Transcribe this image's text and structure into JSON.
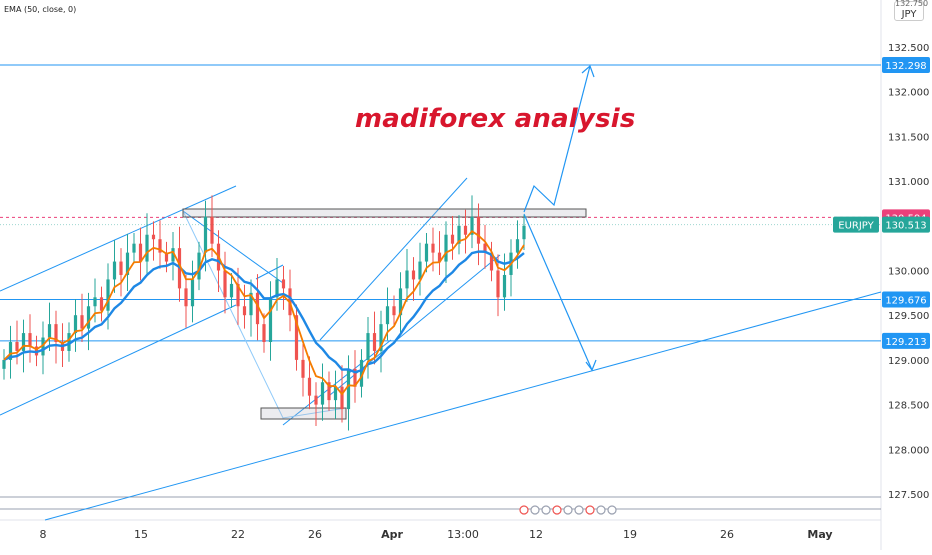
{
  "window": {
    "indicator_legend": "EMA (50, close, 0)",
    "currency_badge_top": "132.750",
    "currency_badge": "JPY"
  },
  "chart_data": {
    "type": "candlestick",
    "title": "madiforex analysis",
    "symbol": "EURJPY",
    "x_axis_ticks": [
      "8",
      "15",
      "22",
      "26",
      "Apr",
      "13:00",
      "12",
      "19",
      "26",
      "May"
    ],
    "y_axis_ticks": [
      127.5,
      128.0,
      128.5,
      129.0,
      129.5,
      130.0,
      130.5,
      131.0,
      131.5,
      132.0,
      132.5
    ],
    "ylim": [
      127.15,
      132.8
    ],
    "price_labels": [
      {
        "value": "132.298",
        "kind": "level",
        "color": "#2196f3"
      },
      {
        "value": "130.594",
        "kind": "resistance",
        "color": "#ec407a"
      },
      {
        "value": "130.513",
        "kind": "last_price",
        "color": "#26a69a"
      },
      {
        "value": "129.676",
        "kind": "level",
        "color": "#2196f3"
      },
      {
        "value": "129.213",
        "kind": "level",
        "color": "#2196f3"
      }
    ],
    "symbol_label": "EURJPY",
    "colors": {
      "up": "#26a69a",
      "down": "#ef5350",
      "ema_fast": "#f57c00",
      "ema_slow": "#1e88e5",
      "drawing": "#2196f3",
      "title": "#d8162d"
    },
    "series": [
      {
        "name": "Price",
        "kind": "candles",
        "close": [
          129.0,
          129.2,
          129.1,
          129.3,
          129.15,
          129.05,
          129.25,
          129.4,
          129.2,
          129.1,
          129.3,
          129.5,
          129.35,
          129.6,
          129.7,
          129.55,
          129.9,
          130.1,
          129.95,
          130.2,
          130.3,
          130.1,
          130.4,
          130.35,
          130.2,
          130.1,
          130.25,
          129.8,
          129.6,
          129.9,
          130.2,
          130.6,
          130.3,
          130.0,
          129.7,
          129.85,
          129.6,
          129.5,
          129.75,
          129.4,
          129.2,
          129.7,
          129.9,
          129.8,
          129.5,
          129.0,
          128.8,
          128.6,
          128.5,
          128.75,
          128.55,
          128.7,
          128.45,
          128.9,
          128.7,
          129.0,
          129.3,
          129.1,
          129.4,
          129.6,
          129.5,
          129.8,
          130.0,
          129.9,
          130.1,
          130.3,
          130.2,
          130.1,
          130.4,
          130.3,
          130.5,
          130.4,
          130.6,
          130.3,
          130.2,
          130.0,
          129.7,
          129.95,
          130.2,
          130.35,
          130.5
        ]
      },
      {
        "name": "EMA",
        "kind": "line",
        "color": "#f57c00"
      },
      {
        "name": "EMA (50, close, 0)",
        "kind": "line",
        "color": "#1e88e5"
      }
    ],
    "grid": false,
    "legend": "top-left"
  }
}
